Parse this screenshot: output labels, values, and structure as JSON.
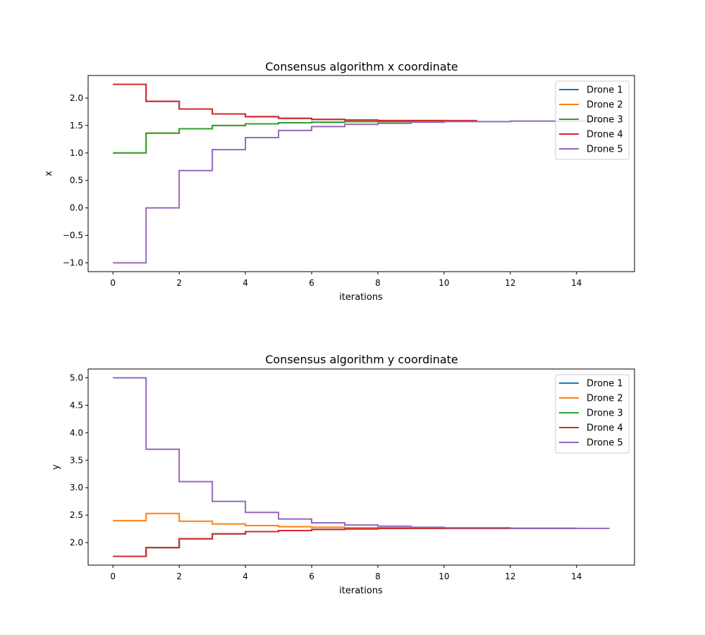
{
  "chart_data": [
    {
      "type": "line",
      "step": "post",
      "title": "Consensus algorithm x coordinate",
      "xlabel": "iterations",
      "ylabel": "x",
      "xlim": [
        -0.75,
        15.75
      ],
      "ylim": [
        -1.16,
        2.41
      ],
      "xticks": [
        0,
        2,
        4,
        6,
        8,
        10,
        12,
        14
      ],
      "xtick_labels": [
        "0",
        "2",
        "4",
        "6",
        "8",
        "10",
        "12",
        "14"
      ],
      "yticks": [
        -1.0,
        -0.5,
        0.0,
        0.5,
        1.0,
        1.5,
        2.0
      ],
      "ytick_labels": [
        "−1.0",
        "−0.5",
        "0.0",
        "0.5",
        "1.0",
        "1.5",
        "2.0"
      ],
      "grid": false,
      "legend": "top-right",
      "series": [
        {
          "name": "Drone 1",
          "color": "#1f77b4",
          "x": [
            0,
            1,
            2,
            3,
            4,
            5,
            6,
            7,
            8,
            9,
            10,
            11
          ],
          "values": [
            2.25,
            1.94,
            1.8,
            1.71,
            1.66,
            1.63,
            1.61,
            1.6,
            1.59,
            1.59,
            1.58,
            1.58
          ]
        },
        {
          "name": "Drone 2",
          "color": "#ff7f0e",
          "x": [
            0,
            1,
            2,
            3,
            4,
            5,
            6,
            7,
            8,
            9,
            10,
            11
          ],
          "values": [
            1.0,
            1.36,
            1.44,
            1.5,
            1.53,
            1.55,
            1.56,
            1.57,
            1.57,
            1.57,
            1.58,
            1.58
          ]
        },
        {
          "name": "Drone 3",
          "color": "#2ca02c",
          "x": [
            0,
            1,
            2,
            3,
            4,
            5,
            6,
            7,
            8,
            9,
            10,
            11
          ],
          "values": [
            1.0,
            1.36,
            1.44,
            1.5,
            1.53,
            1.55,
            1.56,
            1.57,
            1.57,
            1.57,
            1.58,
            1.58
          ]
        },
        {
          "name": "Drone 4",
          "color": "#d62728",
          "x": [
            0,
            1,
            2,
            3,
            4,
            5,
            6,
            7,
            8,
            9,
            10,
            11
          ],
          "values": [
            2.25,
            1.94,
            1.8,
            1.71,
            1.66,
            1.63,
            1.61,
            1.6,
            1.59,
            1.59,
            1.59,
            1.59
          ]
        },
        {
          "name": "Drone 5",
          "color": "#9467bd",
          "x": [
            0,
            1,
            2,
            3,
            4,
            5,
            6,
            7,
            8,
            9,
            10,
            11,
            12,
            13,
            14,
            15
          ],
          "values": [
            -1.0,
            0.0,
            0.68,
            1.06,
            1.28,
            1.41,
            1.48,
            1.52,
            1.54,
            1.56,
            1.57,
            1.57,
            1.58,
            1.58,
            1.58,
            1.58
          ]
        }
      ]
    },
    {
      "type": "line",
      "step": "post",
      "title": "Consensus algorithm y coordinate",
      "xlabel": "iterations",
      "ylabel": "y",
      "xlim": [
        -0.75,
        15.75
      ],
      "ylim": [
        1.59,
        5.16
      ],
      "xticks": [
        0,
        2,
        4,
        6,
        8,
        10,
        12,
        14
      ],
      "xtick_labels": [
        "0",
        "2",
        "4",
        "6",
        "8",
        "10",
        "12",
        "14"
      ],
      "yticks": [
        2.0,
        2.5,
        3.0,
        3.5,
        4.0,
        4.5,
        5.0
      ],
      "ytick_labels": [
        "2.0",
        "2.5",
        "3.0",
        "3.5",
        "4.0",
        "4.5",
        "5.0"
      ],
      "grid": false,
      "legend": "top-right",
      "series": [
        {
          "name": "Drone 1",
          "color": "#1f77b4",
          "x": [
            0,
            1,
            2,
            3,
            4,
            5,
            6,
            7,
            8,
            9,
            10,
            11,
            12,
            13,
            14
          ],
          "values": [
            1.75,
            1.91,
            2.07,
            2.16,
            2.2,
            2.22,
            2.24,
            2.25,
            2.26,
            2.26,
            2.26,
            2.26,
            2.26,
            2.26,
            2.26
          ]
        },
        {
          "name": "Drone 2",
          "color": "#ff7f0e",
          "x": [
            0,
            1,
            2,
            3,
            4,
            5,
            6,
            7,
            8,
            9,
            10,
            11,
            12,
            13,
            14
          ],
          "values": [
            2.4,
            2.53,
            2.39,
            2.34,
            2.31,
            2.29,
            2.28,
            2.27,
            2.27,
            2.27,
            2.26,
            2.26,
            2.26,
            2.26,
            2.26
          ]
        },
        {
          "name": "Drone 3",
          "color": "#2ca02c",
          "x": [
            0,
            1,
            2,
            3,
            4,
            5,
            6,
            7,
            8,
            9,
            10,
            11,
            12,
            13,
            14
          ],
          "values": [
            1.75,
            1.91,
            2.07,
            2.16,
            2.2,
            2.22,
            2.24,
            2.25,
            2.26,
            2.26,
            2.26,
            2.26,
            2.26,
            2.26,
            2.26
          ]
        },
        {
          "name": "Drone 4",
          "color": "#d62728",
          "x": [
            0,
            1,
            2,
            3,
            4,
            5,
            6,
            7,
            8,
            9,
            10,
            11,
            12,
            13,
            14
          ],
          "values": [
            1.75,
            1.91,
            2.07,
            2.16,
            2.2,
            2.22,
            2.24,
            2.25,
            2.26,
            2.26,
            2.26,
            2.26,
            2.26,
            2.26,
            2.26
          ]
        },
        {
          "name": "Drone 5",
          "color": "#9467bd",
          "x": [
            0,
            1,
            2,
            3,
            4,
            5,
            6,
            7,
            8,
            9,
            10,
            11,
            12,
            13,
            14,
            15
          ],
          "values": [
            5.0,
            3.7,
            3.11,
            2.75,
            2.55,
            2.43,
            2.36,
            2.32,
            2.3,
            2.28,
            2.27,
            2.27,
            2.26,
            2.26,
            2.26,
            2.26
          ]
        }
      ]
    }
  ]
}
